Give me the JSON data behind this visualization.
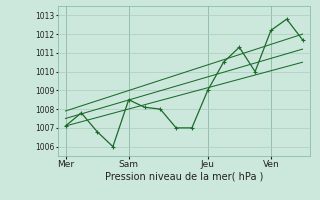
{
  "title": "Pression niveau de la mer( hPa )",
  "bg_color": "#cce8dc",
  "grid_color": "#aaccbb",
  "line_color": "#1a6b2a",
  "ylim": [
    1005.5,
    1013.5
  ],
  "yticks": [
    1006,
    1007,
    1008,
    1009,
    1010,
    1011,
    1012,
    1013
  ],
  "xtick_labels": [
    "Mer",
    "Sam",
    "Jeu",
    "Ven"
  ],
  "xtick_positions": [
    0,
    4,
    9,
    13
  ],
  "vline_positions": [
    0,
    4,
    9,
    13
  ],
  "xlim": [
    -0.5,
    15.5
  ],
  "series_jagged": {
    "x": [
      0,
      1,
      2,
      3,
      4,
      5,
      6,
      7,
      8,
      9,
      10,
      11,
      12,
      13,
      14,
      15
    ],
    "y": [
      1007.1,
      1007.8,
      1006.8,
      1006.0,
      1008.5,
      1008.1,
      1008.0,
      1007.0,
      1007.0,
      1009.0,
      1010.5,
      1011.3,
      1010.0,
      1012.2,
      1012.8,
      1011.7
    ]
  },
  "trend1": {
    "x": [
      0,
      15
    ],
    "y": [
      1007.1,
      1010.5
    ]
  },
  "trend2": {
    "x": [
      0,
      15
    ],
    "y": [
      1007.5,
      1011.2
    ]
  },
  "trend3": {
    "x": [
      0,
      15
    ],
    "y": [
      1007.9,
      1012.0
    ]
  }
}
